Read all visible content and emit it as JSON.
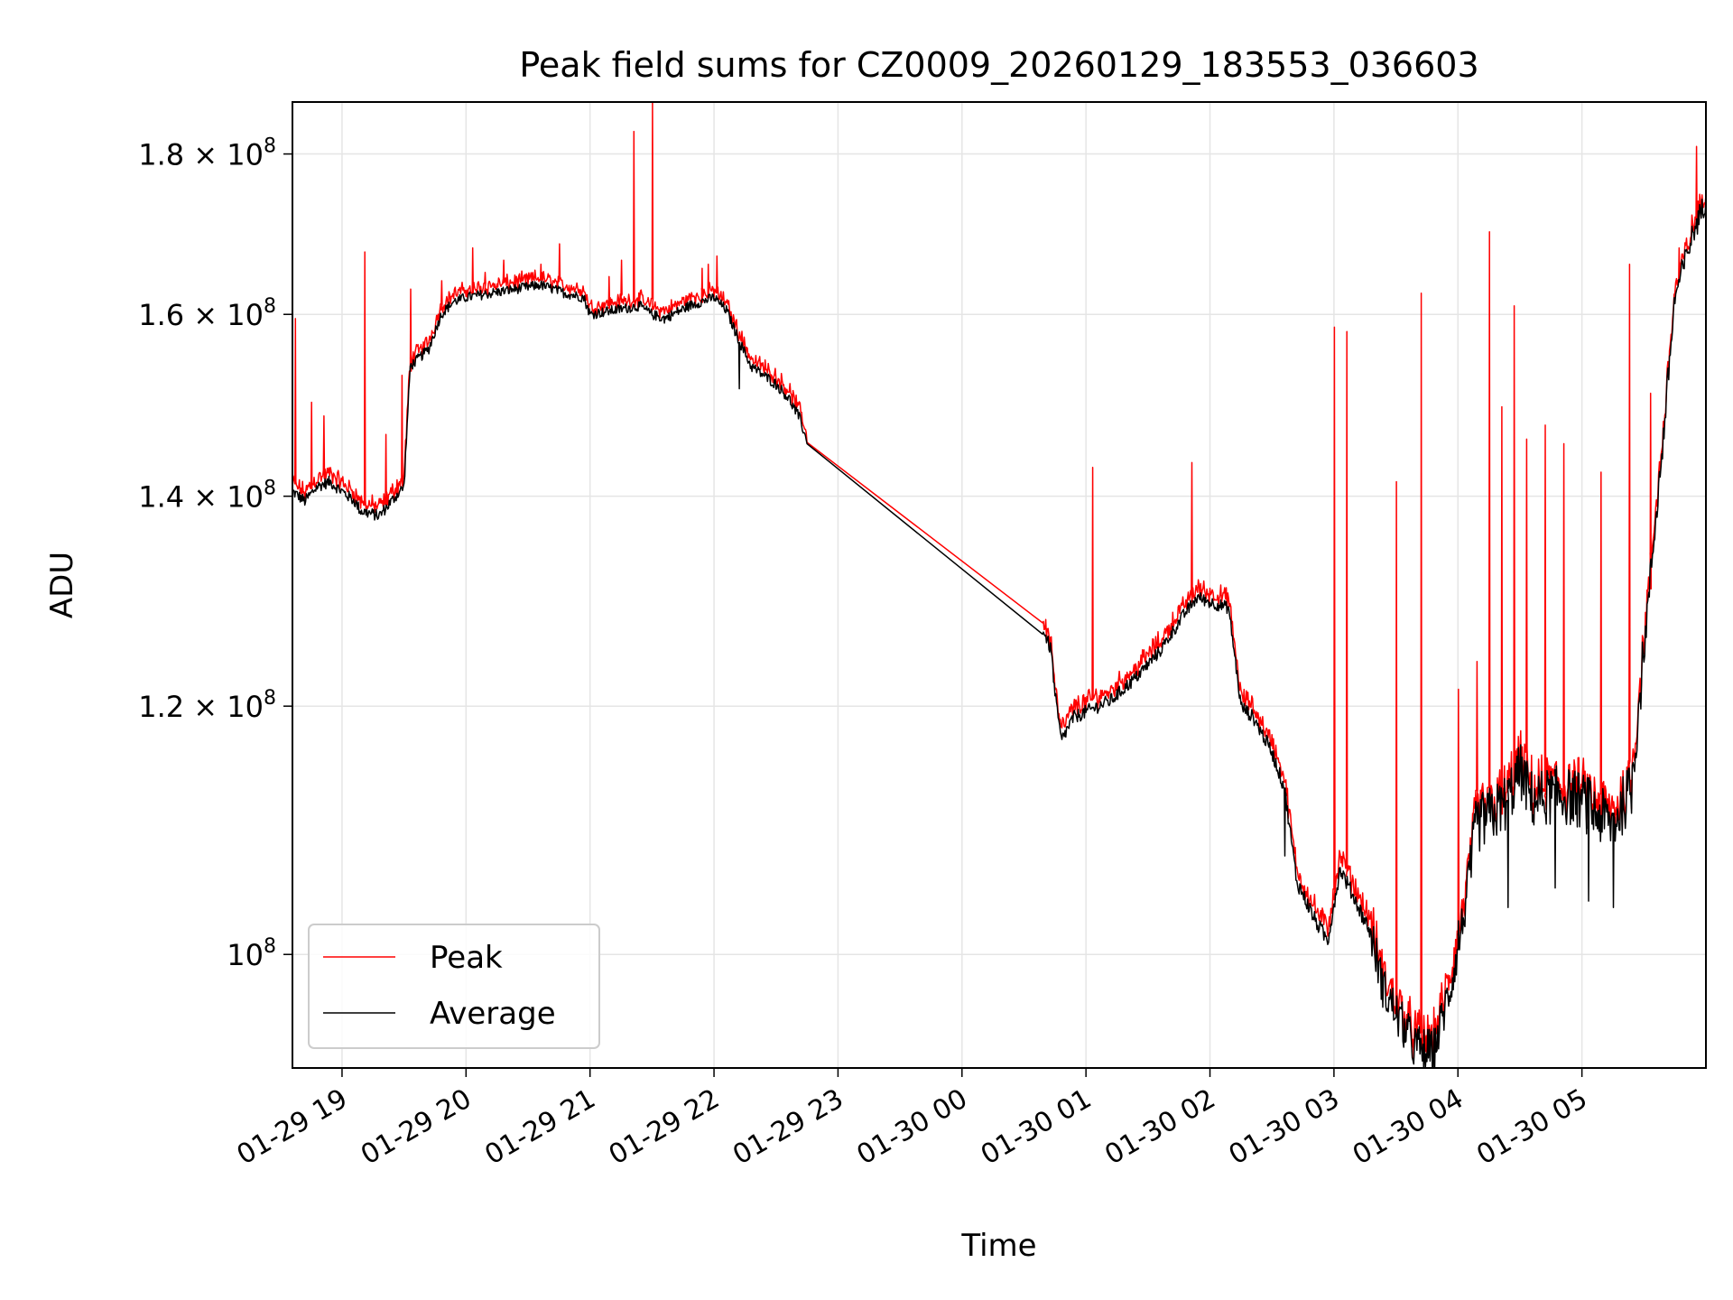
{
  "chart_data": {
    "type": "line",
    "title": "Peak field sums for CZ0009_20260129_183553_036603",
    "xlabel": "Time",
    "ylabel": "ADU",
    "yscale": "log",
    "ylim": [
      92000000,
      187000000
    ],
    "xlim_hours": [
      -0.4,
      11.0
    ],
    "xticks": [
      {
        "hour": 0,
        "label": "01-29 19"
      },
      {
        "hour": 1,
        "label": "01-29 20"
      },
      {
        "hour": 2,
        "label": "01-29 21"
      },
      {
        "hour": 3,
        "label": "01-29 22"
      },
      {
        "hour": 4,
        "label": "01-29 23"
      },
      {
        "hour": 5,
        "label": "01-30 00"
      },
      {
        "hour": 6,
        "label": "01-30 01"
      },
      {
        "hour": 7,
        "label": "01-30 02"
      },
      {
        "hour": 8,
        "label": "01-30 03"
      },
      {
        "hour": 9,
        "label": "01-30 04"
      },
      {
        "hour": 10,
        "label": "01-30 05"
      }
    ],
    "yticks": [
      {
        "value": 100000000,
        "mantissa": "",
        "exponent": "8",
        "base": "10"
      },
      {
        "value": 120000000,
        "mantissa": "1.2",
        "exponent": "8",
        "base": "10"
      },
      {
        "value": 140000000,
        "mantissa": "1.4",
        "exponent": "8",
        "base": "10"
      },
      {
        "value": 160000000,
        "mantissa": "1.6",
        "exponent": "8",
        "base": "10"
      },
      {
        "value": 180000000,
        "mantissa": "1.8",
        "exponent": "8",
        "base": "10"
      }
    ],
    "grid": true,
    "legend_position": "lower-left",
    "series": [
      {
        "name": "Peak",
        "color": "#ff0000"
      },
      {
        "name": "Average",
        "color": "#000000"
      }
    ],
    "average_keypoints": [
      [
        -0.4,
        140.5
      ],
      [
        -0.3,
        139.5
      ],
      [
        -0.2,
        141.0
      ],
      [
        -0.1,
        141.5
      ],
      [
        0.0,
        140.5
      ],
      [
        0.1,
        139.5
      ],
      [
        0.15,
        138.5
      ],
      [
        0.3,
        138.0
      ],
      [
        0.4,
        139.5
      ],
      [
        0.5,
        141.0
      ],
      [
        0.55,
        154.0
      ],
      [
        0.7,
        156.0
      ],
      [
        0.8,
        160.0
      ],
      [
        0.9,
        161.5
      ],
      [
        1.0,
        162.0
      ],
      [
        1.2,
        162.5
      ],
      [
        1.4,
        163.0
      ],
      [
        1.6,
        163.5
      ],
      [
        1.8,
        162.5
      ],
      [
        1.95,
        162.0
      ],
      [
        2.0,
        160.0
      ],
      [
        2.2,
        160.5
      ],
      [
        2.4,
        161.0
      ],
      [
        2.5,
        160.0
      ],
      [
        2.6,
        159.5
      ],
      [
        2.8,
        161.0
      ],
      [
        3.0,
        162.0
      ],
      [
        3.1,
        160.5
      ],
      [
        3.2,
        157.0
      ],
      [
        3.3,
        154.0
      ],
      [
        3.5,
        152.0
      ],
      [
        3.6,
        150.5
      ],
      [
        3.7,
        148.0
      ],
      [
        3.75,
        145.5
      ],
      [
        5.65,
        127.0
      ],
      [
        5.72,
        125.0
      ],
      [
        5.75,
        121.0
      ],
      [
        5.8,
        117.0
      ],
      [
        5.9,
        119.0
      ],
      [
        6.0,
        119.5
      ],
      [
        6.2,
        120.5
      ],
      [
        6.4,
        122.5
      ],
      [
        6.6,
        125.0
      ],
      [
        6.8,
        128.5
      ],
      [
        6.9,
        130.0
      ],
      [
        7.0,
        129.5
      ],
      [
        7.15,
        129.0
      ],
      [
        7.25,
        120.0
      ],
      [
        7.35,
        119.0
      ],
      [
        7.5,
        116.0
      ],
      [
        7.6,
        113.0
      ],
      [
        7.7,
        105.5
      ],
      [
        7.85,
        102.5
      ],
      [
        7.95,
        101.0
      ],
      [
        8.05,
        106.5
      ],
      [
        8.15,
        104.5
      ],
      [
        8.3,
        101.5
      ],
      [
        8.4,
        97.5
      ],
      [
        8.55,
        95.0
      ],
      [
        8.65,
        93.5
      ],
      [
        8.8,
        93.0
      ],
      [
        8.95,
        98.0
      ],
      [
        9.05,
        103.0
      ],
      [
        9.15,
        110.0
      ],
      [
        9.3,
        111.0
      ],
      [
        9.4,
        112.0
      ],
      [
        9.5,
        114.5
      ],
      [
        9.6,
        112.0
      ],
      [
        9.8,
        112.5
      ],
      [
        10.0,
        112.0
      ],
      [
        10.1,
        111.0
      ],
      [
        10.25,
        110.0
      ],
      [
        10.4,
        113.0
      ],
      [
        10.5,
        125.0
      ],
      [
        10.65,
        145.0
      ],
      [
        10.75,
        162.0
      ],
      [
        10.9,
        170.0
      ],
      [
        11.0,
        174.0
      ]
    ],
    "peak_spikes": [
      [
        -0.38,
        159.5
      ],
      [
        -0.25,
        150.0
      ],
      [
        -0.15,
        148.5
      ],
      [
        0.18,
        167.5
      ],
      [
        0.35,
        146.5
      ],
      [
        0.48,
        153.0
      ],
      [
        0.55,
        163.0
      ],
      [
        0.8,
        164.0
      ],
      [
        1.05,
        168.0
      ],
      [
        1.15,
        165.0
      ],
      [
        1.3,
        166.5
      ],
      [
        1.6,
        166.0
      ],
      [
        1.75,
        168.5
      ],
      [
        2.15,
        164.5
      ],
      [
        2.25,
        166.5
      ],
      [
        2.35,
        183.0
      ],
      [
        2.5,
        187.0
      ],
      [
        2.9,
        165.5
      ],
      [
        2.95,
        166.0
      ],
      [
        3.02,
        167.0
      ],
      [
        6.05,
        143.0
      ],
      [
        6.85,
        143.5
      ],
      [
        8.0,
        158.5
      ],
      [
        8.1,
        158.0
      ],
      [
        8.5,
        141.5
      ],
      [
        8.7,
        162.5
      ],
      [
        9.0,
        121.5
      ],
      [
        9.15,
        124.0
      ],
      [
        9.25,
        170.0
      ],
      [
        9.35,
        149.5
      ],
      [
        9.45,
        161.0
      ],
      [
        9.55,
        146.0
      ],
      [
        9.7,
        147.5
      ],
      [
        9.85,
        145.5
      ],
      [
        10.15,
        142.5
      ],
      [
        10.38,
        166.0
      ],
      [
        10.55,
        151.0
      ],
      [
        10.78,
        168.0
      ],
      [
        10.92,
        181.0
      ]
    ],
    "average_dips": [
      [
        3.2,
        151.5
      ],
      [
        7.6,
        107.5
      ],
      [
        8.72,
        92.0
      ],
      [
        9.0,
        102.5
      ],
      [
        9.4,
        103.5
      ],
      [
        9.78,
        105.0
      ],
      [
        10.05,
        104.0
      ],
      [
        10.25,
        103.5
      ]
    ]
  }
}
